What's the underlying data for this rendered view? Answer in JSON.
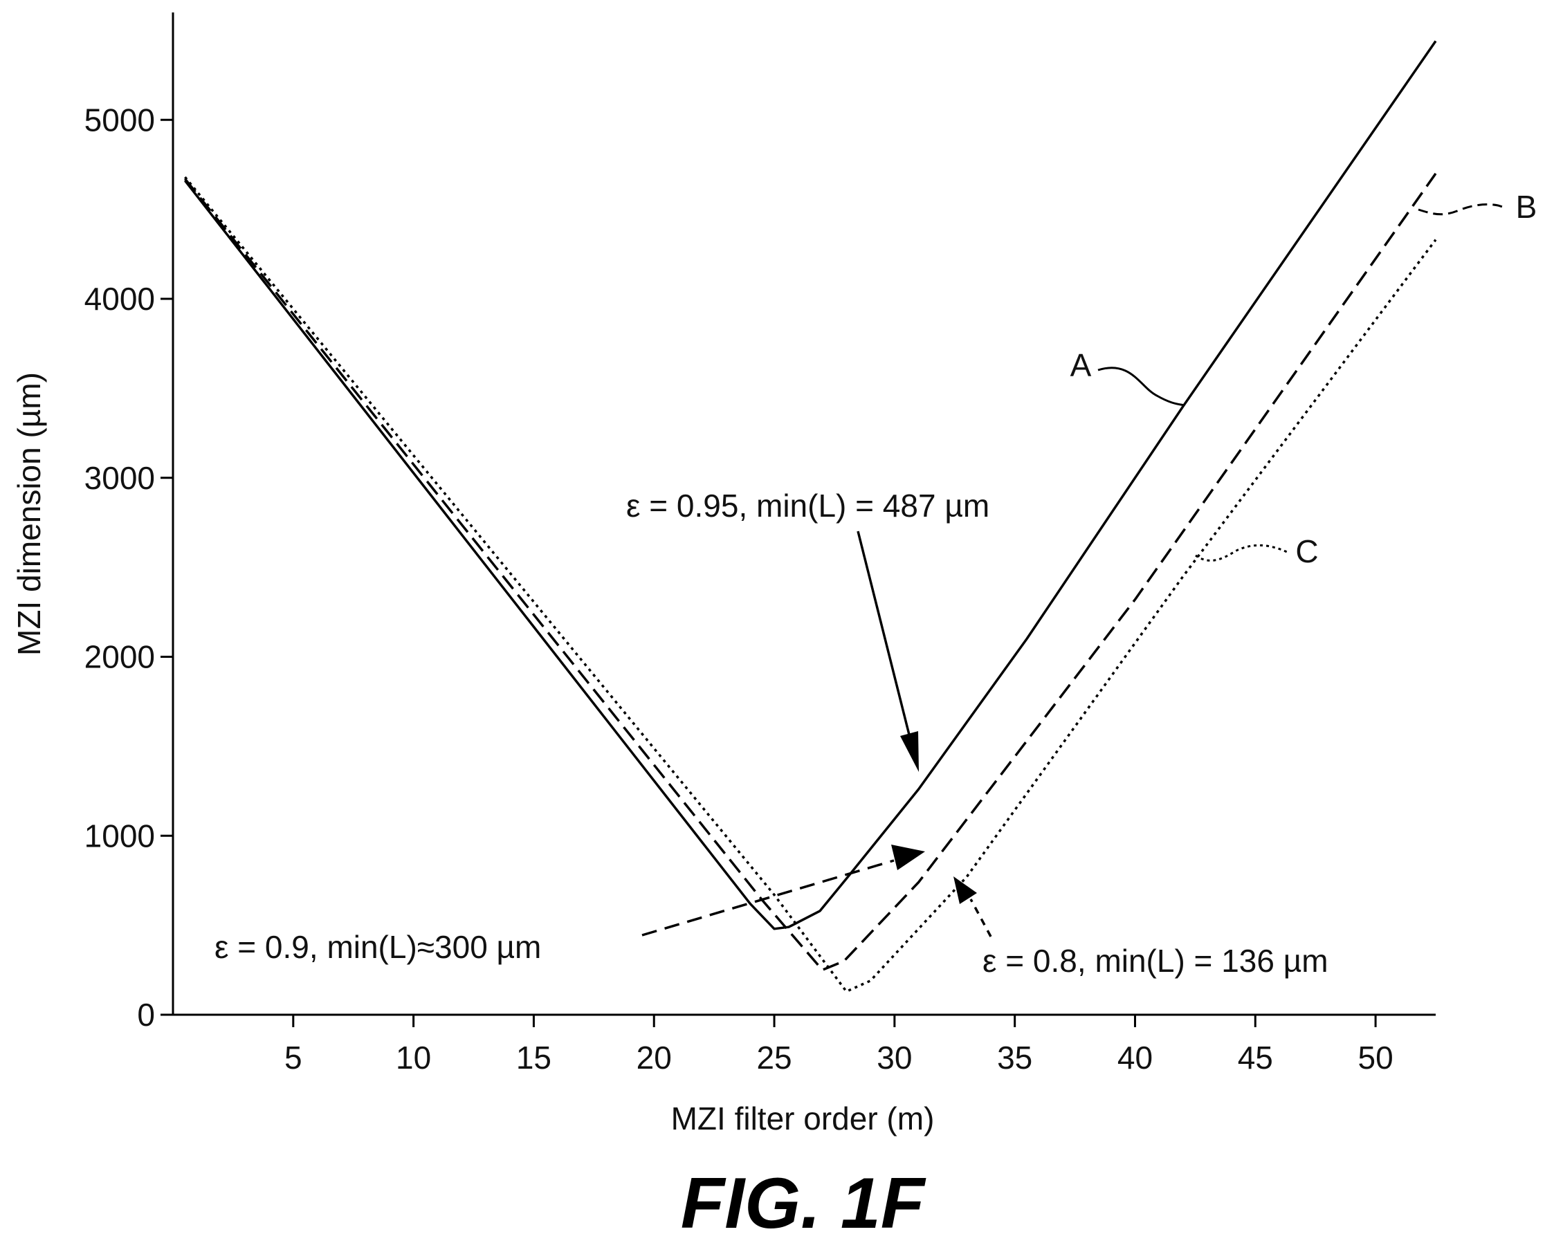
{
  "figure_label": "FIG. 1F",
  "chart_data": {
    "type": "line",
    "title": "",
    "xlabel": "MZI filter order (m)",
    "ylabel": "MZI dimension (µm)",
    "xlim": [
      0,
      52.5
    ],
    "ylim": [
      0,
      5600
    ],
    "x_ticks": [
      5,
      10,
      15,
      20,
      25,
      30,
      35,
      40,
      45,
      50
    ],
    "x_tick_labels": [
      "5",
      "10",
      "15",
      "20",
      "25",
      "30",
      "35",
      "40",
      "45",
      "50"
    ],
    "y_ticks": [
      0,
      1000,
      2000,
      3000,
      4000,
      5000
    ],
    "y_tick_labels": [
      "0",
      "1000",
      "2000",
      "3000",
      "4000",
      "5000"
    ],
    "grid": false,
    "series": [
      {
        "name": "A",
        "style": "solid",
        "color": "#000000",
        "points": [
          [
            0.5,
            4660
          ],
          [
            24,
            620
          ],
          [
            25,
            480
          ],
          [
            25.6,
            490
          ],
          [
            26.9,
            580
          ],
          [
            28,
            760
          ],
          [
            31,
            1260
          ],
          [
            35.5,
            2100
          ],
          [
            42,
            3400
          ],
          [
            52.5,
            5440
          ]
        ]
      },
      {
        "name": "B",
        "style": "dashed",
        "color": "#000000",
        "points": [
          [
            0.5,
            4670
          ],
          [
            24.5,
            640
          ],
          [
            27,
            250
          ],
          [
            27.9,
            300
          ],
          [
            31,
            740
          ],
          [
            40,
            2320
          ],
          [
            52.5,
            4700
          ]
        ]
      },
      {
        "name": "C",
        "style": "dotted",
        "color": "#000000",
        "points": [
          [
            0.5,
            4680
          ],
          [
            25,
            670
          ],
          [
            28,
            130
          ],
          [
            29,
            190
          ],
          [
            33,
            770
          ],
          [
            42,
            2450
          ],
          [
            52.5,
            4330
          ]
        ]
      }
    ],
    "annotations": [
      {
        "text": "ε = 0.95, min(L) = 487 µm",
        "series": "A"
      },
      {
        "text": "ε = 0.9, min(L)≈300 µm",
        "series": "B"
      },
      {
        "text": "ε = 0.8, min(L) =  136 µm",
        "series": "C"
      }
    ]
  }
}
